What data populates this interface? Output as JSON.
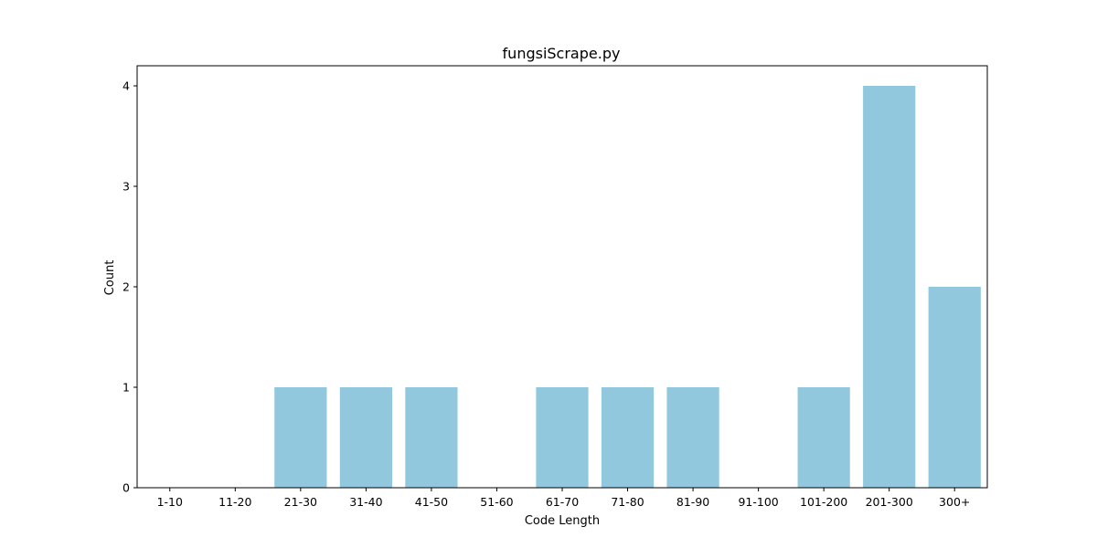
{
  "chart_data": {
    "type": "bar",
    "title": "fungsiScrape.py",
    "xlabel": "Code Length",
    "ylabel": "Count",
    "categories": [
      "1-10",
      "11-20",
      "21-30",
      "31-40",
      "41-50",
      "51-60",
      "61-70",
      "71-80",
      "81-90",
      "91-100",
      "101-200",
      "201-300",
      "300+"
    ],
    "values": [
      0,
      0,
      1,
      1,
      1,
      0,
      1,
      1,
      1,
      0,
      1,
      4,
      2
    ],
    "ylim": [
      0,
      4.2
    ],
    "yticks": [
      "0",
      "1",
      "2",
      "3",
      "4"
    ],
    "bar_color": "#92c8de",
    "grid": false,
    "legend": "none"
  }
}
